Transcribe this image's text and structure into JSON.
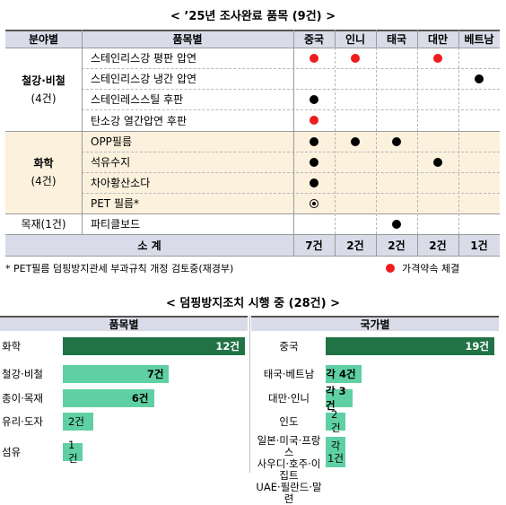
{
  "section1_title": "< ’25년 조사완료 품목 (9건) >",
  "section2_title": "< 덤핑방지조치 시행 중 (28건) >",
  "table": {
    "headers": [
      "분야별",
      "품목별",
      "중국",
      "인니",
      "태국",
      "대만",
      "베트남"
    ],
    "groups": [
      {
        "name": "철강·비철",
        "count": "(4건)"
      },
      {
        "name": "화학",
        "count": "(4건)"
      },
      {
        "name": "목재(1건)",
        "count": ""
      }
    ],
    "items": [
      {
        "name": "스테인리스강 평판 압연",
        "marks": [
          "red",
          "red",
          "",
          "red",
          ""
        ]
      },
      {
        "name": "스테인리스강 냉간 압연",
        "marks": [
          "",
          "",
          "",
          "",
          "black"
        ]
      },
      {
        "name": "스테인레스스틸 후판",
        "marks": [
          "black",
          "",
          "",
          "",
          ""
        ]
      },
      {
        "name": "탄소강 열간압연 후판",
        "marks": [
          "red",
          "",
          "",
          "",
          ""
        ]
      },
      {
        "name": "OPP필름",
        "marks": [
          "black",
          "black",
          "black",
          "",
          ""
        ]
      },
      {
        "name": "석유수지",
        "marks": [
          "black",
          "",
          "",
          "black",
          ""
        ]
      },
      {
        "name": "차아황산소다",
        "marks": [
          "black",
          "",
          "",
          "",
          ""
        ]
      },
      {
        "name": "PET 필름*",
        "marks": [
          "ring",
          "",
          "",
          "",
          ""
        ]
      },
      {
        "name": "파티클보드",
        "marks": [
          "",
          "",
          "black",
          "",
          ""
        ]
      }
    ],
    "total_label": "소      계",
    "totals": [
      "7건",
      "2건",
      "2건",
      "2건",
      "1건"
    ]
  },
  "footnote": "* PET필름 덤핑방지관세 부과규칙 개정 검토중(재경부)",
  "legend_label": "가격약속 체결",
  "colors": {
    "red_dot": "#ee1c1c",
    "black_dot": "#000000",
    "header_bg": "#d9dce8",
    "chem_bg": "#fbf1dd",
    "dark_bar": "#217346",
    "light_bar": "#5fd0a3"
  },
  "chart_data": [
    {
      "type": "bar",
      "title": "품목별",
      "categories": [
        "화학",
        "철강·비철",
        "종이·목재",
        "유리·도자",
        "섬유"
      ],
      "values": [
        12,
        7,
        6,
        2,
        1
      ],
      "labels": [
        "12건",
        "7건",
        "6건",
        "2건",
        "1건"
      ]
    },
    {
      "type": "bar",
      "title": "국가별",
      "categories": [
        "중국",
        "태국·베트남",
        "대만·인니",
        "인도",
        "일본·미국·프랑스 사우디·호주·이집트 UAE·필란드·말련"
      ],
      "values": [
        19,
        4,
        3,
        2,
        1
      ],
      "labels": [
        "19건",
        "각 4건",
        "각 3건",
        "2건",
        "각 1건"
      ],
      "category_lines": [
        [
          "중국"
        ],
        [
          "태국·베트남"
        ],
        [
          "대만·인니"
        ],
        [
          "인도"
        ],
        [
          "일본·미국·프랑스",
          "사우디·호주·이집트",
          "UAE·필란드·말련"
        ]
      ],
      "label_lines": [
        [
          "19건"
        ],
        [
          "각 4건"
        ],
        [
          "각 3건"
        ],
        [
          "2건"
        ],
        [
          "각",
          "1건"
        ]
      ]
    }
  ]
}
